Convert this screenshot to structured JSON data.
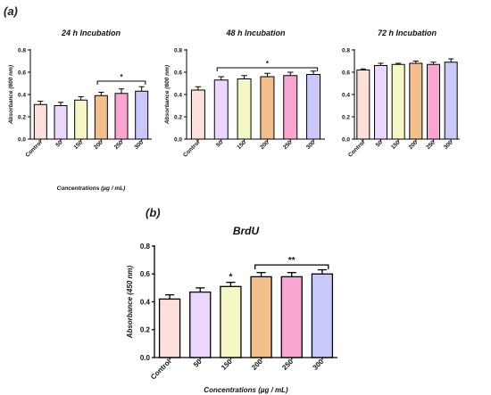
{
  "panel_labels": {
    "a": "(a)",
    "b": "(b)"
  },
  "chart_data": [
    {
      "type": "bar",
      "title": "24 h Incubation",
      "xlabel": "Concentrations (µg / mL)",
      "ylabel": "Absorbance (600 nm)",
      "ylim": [
        0,
        0.8
      ],
      "yticks": [
        "0.0",
        "0.2",
        "0.4",
        "0.6",
        "0.8"
      ],
      "categories": [
        "Control",
        "50",
        "150",
        "200",
        "250",
        "300"
      ],
      "values": [
        0.31,
        0.3,
        0.35,
        0.39,
        0.41,
        0.43
      ],
      "errors": [
        0.03,
        0.03,
        0.03,
        0.03,
        0.04,
        0.04
      ],
      "colors": [
        "#fde0dc",
        "#ead7fb",
        "#f5f8c4",
        "#f3c08c",
        "#f8a6cf",
        "#c8c9f9"
      ],
      "significance": [
        {
          "from": 3,
          "to": 5,
          "label": "*",
          "y": 0.52
        }
      ]
    },
    {
      "type": "bar",
      "title": "48 h Incubation",
      "xlabel": "",
      "ylabel": "Absorbance (600 nm)",
      "ylim": [
        0,
        0.8
      ],
      "yticks": [
        "0.0",
        "0.2",
        "0.4",
        "0.6",
        "0.8"
      ],
      "categories": [
        "Control",
        "50",
        "150",
        "200",
        "250",
        "300"
      ],
      "values": [
        0.44,
        0.53,
        0.54,
        0.56,
        0.57,
        0.58
      ],
      "errors": [
        0.03,
        0.03,
        0.03,
        0.03,
        0.03,
        0.03
      ],
      "colors": [
        "#fde0dc",
        "#ead7fb",
        "#f5f8c4",
        "#f3c08c",
        "#f8a6cf",
        "#c8c9f9"
      ],
      "significance": [
        {
          "from": 1,
          "to": 5,
          "label": "*",
          "y": 0.64
        }
      ]
    },
    {
      "type": "bar",
      "title": "72 h Incubation",
      "xlabel": "",
      "ylabel": "",
      "ylim": [
        0,
        0.8
      ],
      "yticks": [
        "0.0",
        "0.2",
        "0.4",
        "0.6",
        "0.8"
      ],
      "categories": [
        "Control",
        "50",
        "150",
        "200",
        "250",
        "300"
      ],
      "values": [
        0.62,
        0.66,
        0.67,
        0.68,
        0.67,
        0.69
      ],
      "errors": [
        0.01,
        0.02,
        0.01,
        0.02,
        0.02,
        0.03
      ],
      "colors": [
        "#fde0dc",
        "#ead7fb",
        "#f5f8c4",
        "#f3c08c",
        "#f8a6cf",
        "#c8c9f9"
      ],
      "significance": []
    },
    {
      "type": "bar",
      "title": "BrdU",
      "xlabel": "Concentrations (µg / mL)",
      "ylabel": "Absorbance (450 nm)",
      "ylim": [
        0,
        0.8
      ],
      "yticks": [
        "0.0",
        "0.2",
        "0.4",
        "0.6",
        "0.8"
      ],
      "categories": [
        "Control",
        "50",
        "150",
        "200",
        "250",
        "300"
      ],
      "values": [
        0.42,
        0.47,
        0.51,
        0.58,
        0.58,
        0.6
      ],
      "errors": [
        0.03,
        0.03,
        0.03,
        0.03,
        0.03,
        0.03
      ],
      "colors": [
        "#fde0dc",
        "#ead7fb",
        "#f5f8c4",
        "#f3c08c",
        "#f8a6cf",
        "#c8c9f9"
      ],
      "bar_stars": [
        {
          "index": 2,
          "label": "*"
        }
      ],
      "significance": [
        {
          "from": 3,
          "to": 5,
          "label": "**",
          "y": 0.665
        }
      ]
    }
  ]
}
